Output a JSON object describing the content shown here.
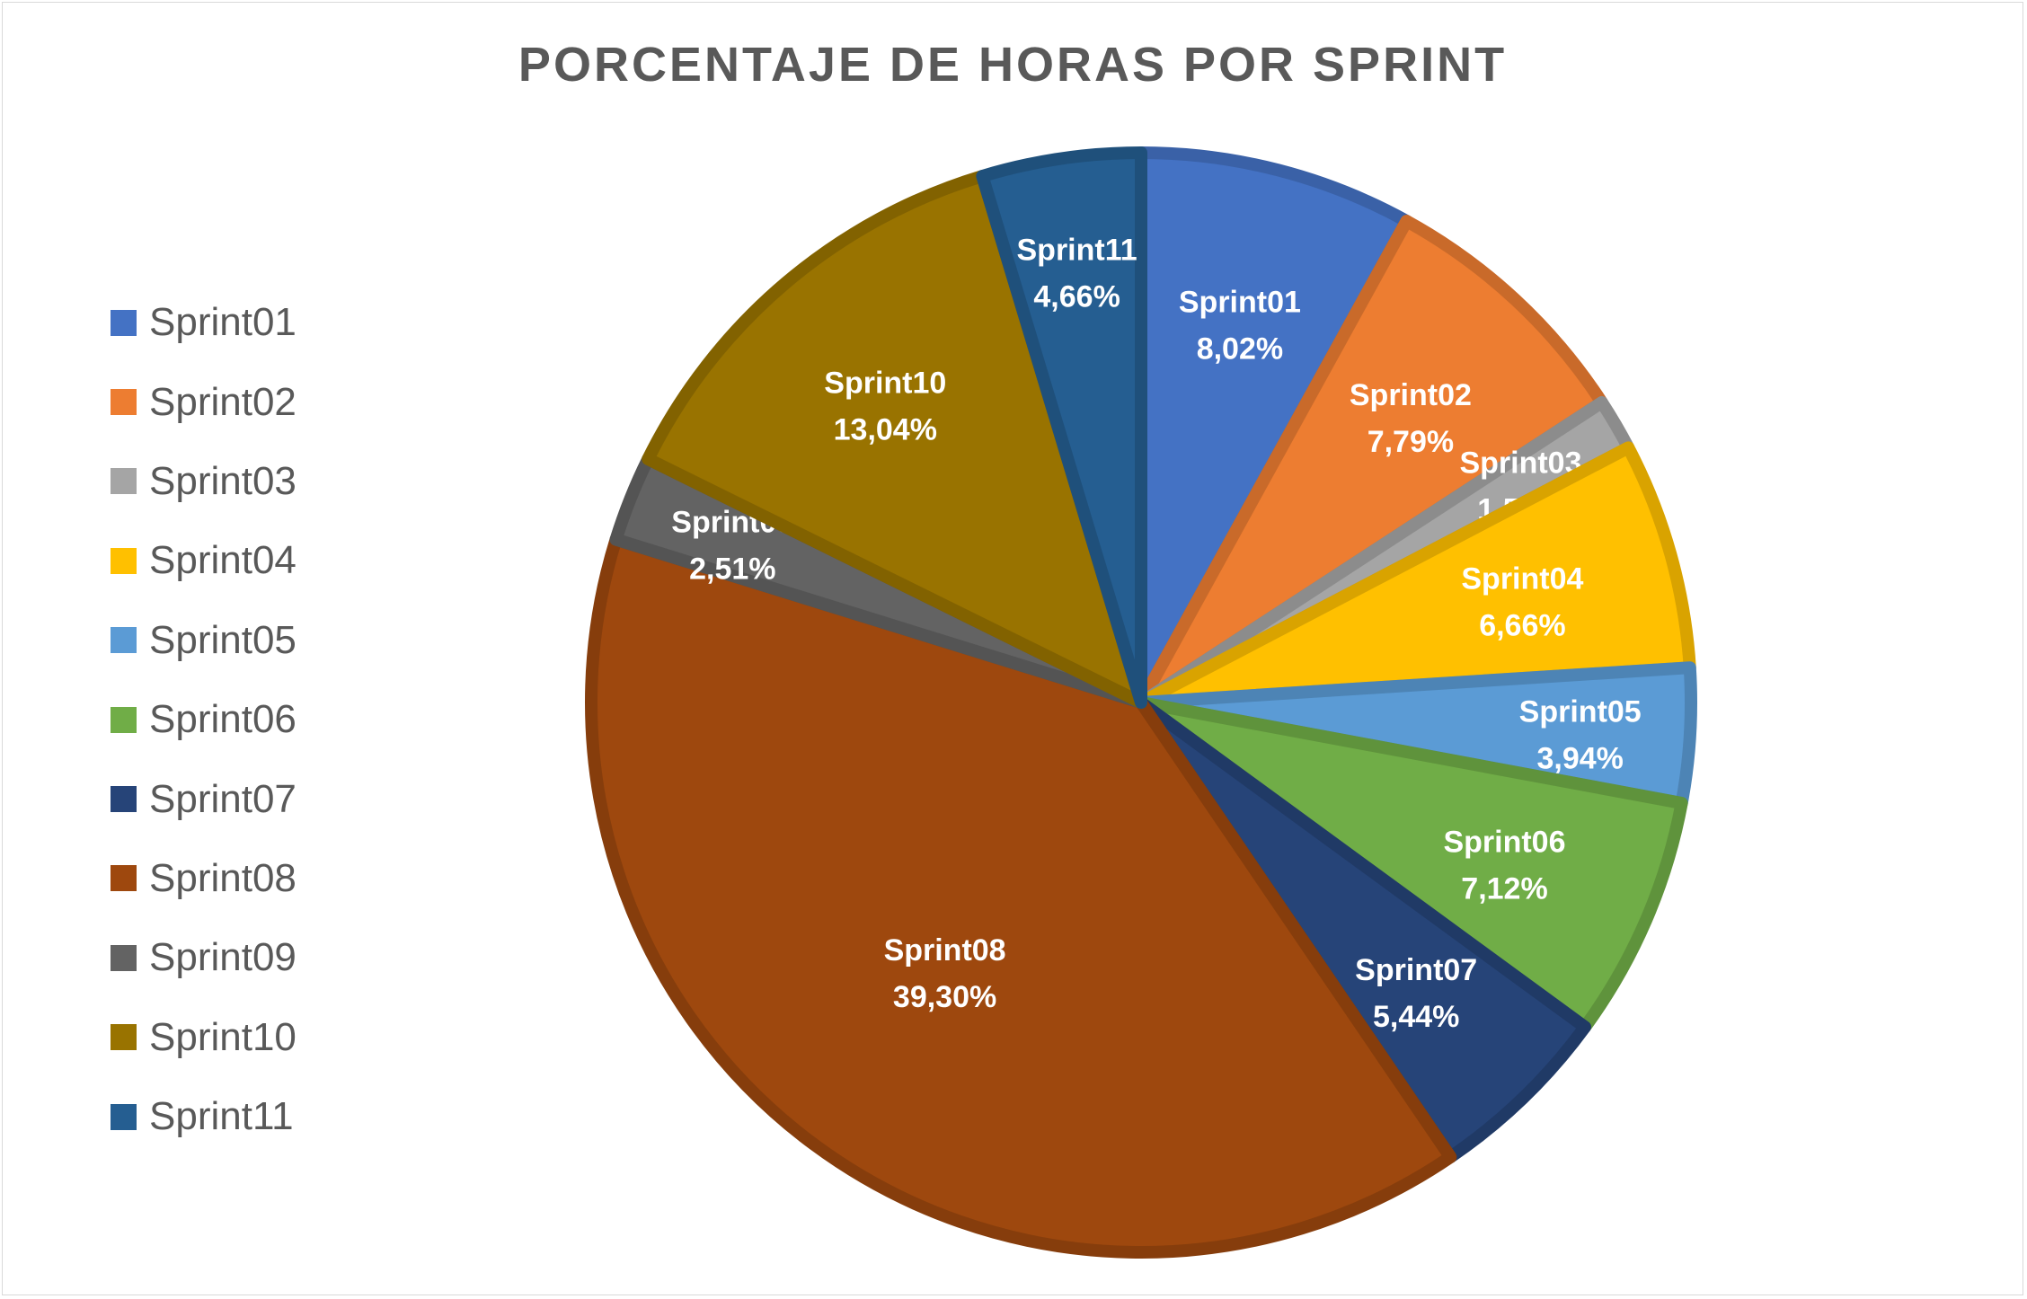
{
  "chart_data": {
    "type": "pie",
    "title": "PORCENTAJE DE HORAS POR SPRINT",
    "legend_position": "left",
    "categories": [
      "Sprint01",
      "Sprint02",
      "Sprint03",
      "Sprint04",
      "Sprint05",
      "Sprint06",
      "Sprint07",
      "Sprint08",
      "Sprint09",
      "Sprint10",
      "Sprint11"
    ],
    "values": [
      8.02,
      7.79,
      1.52,
      6.66,
      3.94,
      7.12,
      5.44,
      39.3,
      2.51,
      13.04,
      4.66
    ],
    "value_labels": [
      "8,02%",
      "7,79%",
      "1,52%",
      "6,66%",
      "3,94%",
      "7,12%",
      "5,44%",
      "39,30%",
      "2,51%",
      "13,04%",
      "4,66%"
    ],
    "colors": [
      "#4472C4",
      "#ED7D31",
      "#A5A5A5",
      "#FFC000",
      "#5B9BD5",
      "#70AD47",
      "#264478",
      "#9E480E",
      "#636363",
      "#997300",
      "#255E91"
    ]
  }
}
